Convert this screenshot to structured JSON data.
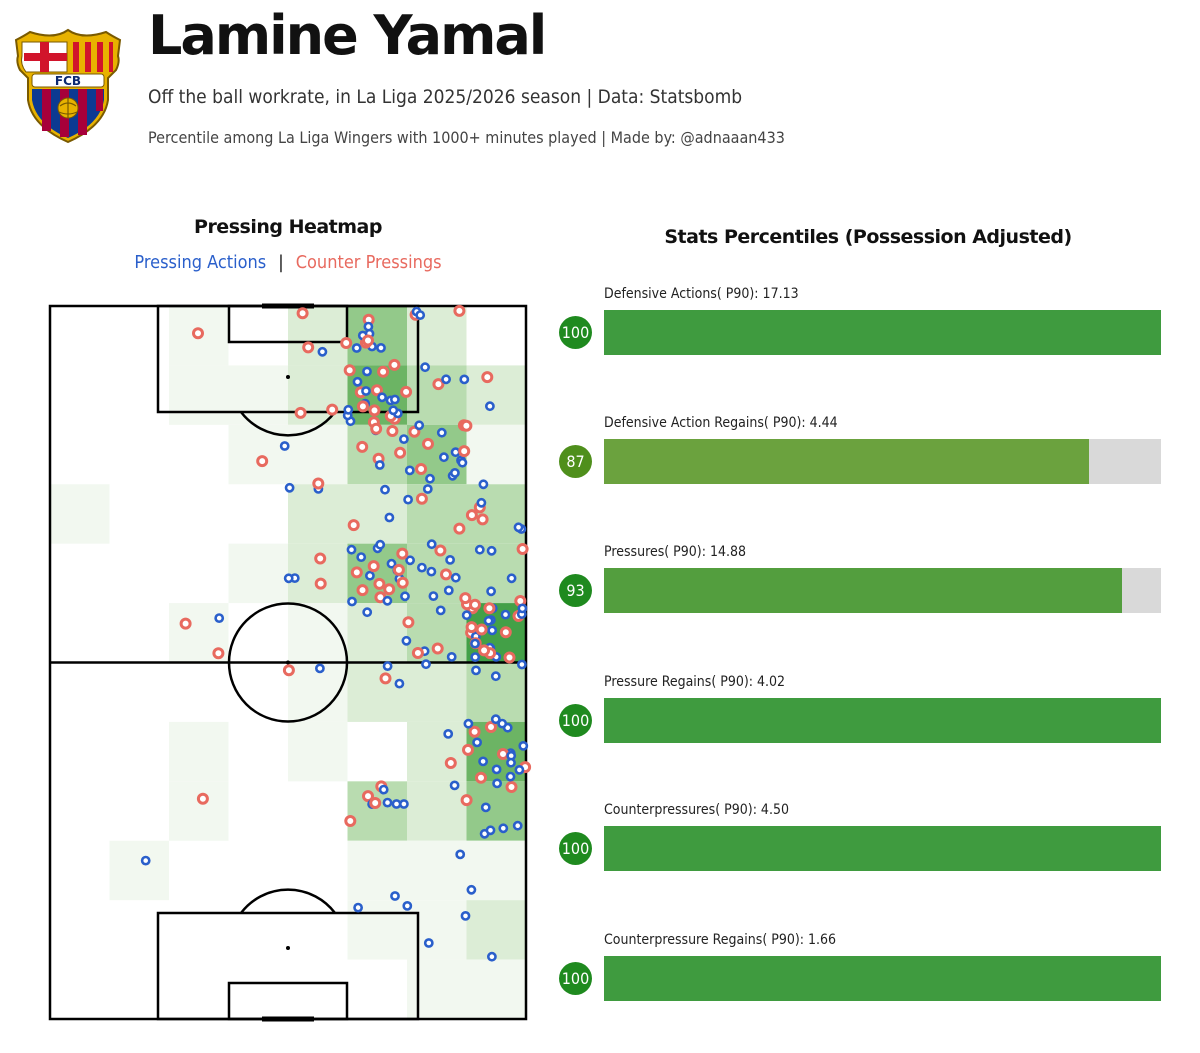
{
  "header": {
    "title": "Lamine Yamal",
    "subtitle": "Off the ball workrate, in La Liga 2025/2026 season | Data: Statsbomb",
    "subtitle2": "Percentile among La Liga Wingers with 1000+ minutes played | Made by: @adnaaan433",
    "crest_text": "FCB"
  },
  "colors": {
    "pressing": "#2a5fcb",
    "counter": "#e86a5f",
    "bar_full": "#3f9b3f",
    "badge_green": "#1f8a1f",
    "badge_olive": "#4f8f1c"
  },
  "heatmap": {
    "title": "Pressing Heatmap",
    "legend_pressing": "Pressing Actions",
    "legend_separator": "|",
    "legend_counter": "Counter Pressings"
  },
  "stats": {
    "title": "Stats Percentiles (Possession Adjusted)",
    "items": [
      {
        "label": "Defensive Actions( P90): 17.13",
        "percentile": 100,
        "badge": "100",
        "color": "#3f9b3f"
      },
      {
        "label": "Defensive Action Regains( P90): 4.44",
        "percentile": 87,
        "badge": "87",
        "color": "#6ba23e"
      },
      {
        "label": "Pressures( P90): 14.88",
        "percentile": 93,
        "badge": "93",
        "color": "#539e3e"
      },
      {
        "label": "Pressure Regains( P90): 4.02",
        "percentile": 100,
        "badge": "100",
        "color": "#3f9b3f"
      },
      {
        "label": "Counterpressures( P90): 4.50",
        "percentile": 100,
        "badge": "100",
        "color": "#3f9b3f"
      },
      {
        "label": "Counterpressure Regains( P90): 1.66",
        "percentile": 100,
        "badge": "100",
        "color": "#3f9b3f"
      }
    ]
  },
  "chart_data": [
    {
      "type": "heatmap",
      "title": "Pressing Heatmap",
      "grid_columns": 8,
      "grid_rows": 12,
      "series": [
        {
          "name": "Pressing Actions",
          "marker": "circle",
          "color": "#2a5fcb"
        },
        {
          "name": "Counter Pressings",
          "marker": "circle",
          "color": "#e86a5f"
        }
      ],
      "intensity": [
        [
          0,
          0,
          1,
          0,
          2,
          4,
          2,
          0
        ],
        [
          0,
          0,
          1,
          1,
          2,
          5,
          3,
          2
        ],
        [
          0,
          0,
          0,
          1,
          1,
          3,
          4,
          1
        ],
        [
          1,
          0,
          0,
          0,
          2,
          2,
          3,
          3
        ],
        [
          0,
          0,
          0,
          1,
          2,
          4,
          3,
          3
        ],
        [
          0,
          0,
          1,
          0,
          1,
          2,
          3,
          6
        ],
        [
          0,
          0,
          0,
          0,
          1,
          2,
          2,
          3
        ],
        [
          0,
          0,
          1,
          0,
          1,
          0,
          2,
          5
        ],
        [
          0,
          0,
          1,
          0,
          0,
          3,
          2,
          4
        ],
        [
          0,
          1,
          0,
          0,
          0,
          1,
          1,
          1
        ],
        [
          0,
          0,
          0,
          0,
          0,
          1,
          1,
          2
        ],
        [
          0,
          0,
          0,
          0,
          0,
          0,
          1,
          1
        ]
      ]
    },
    {
      "type": "bar",
      "title": "Stats Percentiles (Possession Adjusted)",
      "orientation": "horizontal",
      "categories": [
        "Defensive Actions( P90): 17.13",
        "Defensive Action Regains( P90): 4.44",
        "Pressures( P90): 14.88",
        "Pressure Regains( P90): 4.02",
        "Counterpressures( P90): 4.50",
        "Counterpressure Regains( P90): 1.66"
      ],
      "values": [
        100,
        87,
        93,
        100,
        100,
        100
      ],
      "xlim": [
        0,
        100
      ]
    }
  ]
}
